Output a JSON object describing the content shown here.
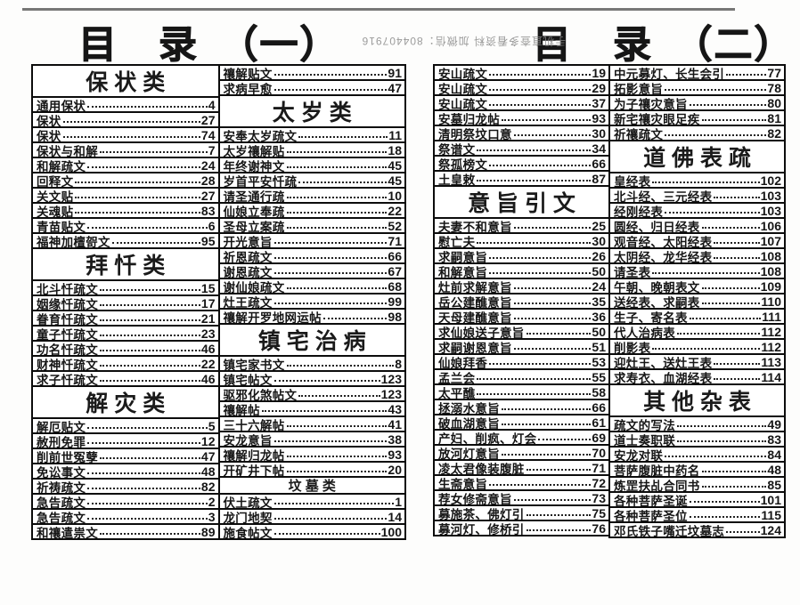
{
  "scan": {
    "stamp_text": "手机直查多看资料 加微信：804407916"
  },
  "pages": [
    {
      "title": "目　录　（一）",
      "columns": [
        {
          "blocks": [
            {
              "t": "h",
              "text": "保 状 类"
            },
            {
              "t": "e",
              "label": "通用保状",
              "page": "4"
            },
            {
              "t": "e",
              "label": "保状",
              "page": "27"
            },
            {
              "t": "e",
              "label": "保状",
              "page": "74"
            },
            {
              "t": "e",
              "label": "保状与和解",
              "page": "7"
            },
            {
              "t": "e",
              "label": "和解疏文",
              "page": "24"
            },
            {
              "t": "e",
              "label": "回释文",
              "page": "28"
            },
            {
              "t": "e",
              "label": "关文贴",
              "page": "27"
            },
            {
              "t": "e",
              "label": "关魂贴",
              "page": "83"
            },
            {
              "t": "e",
              "label": "青苗贴文",
              "page": "6"
            },
            {
              "t": "e",
              "label": "福神加檀哿文",
              "page": "95"
            },
            {
              "t": "h",
              "text": "拜 忏 类"
            },
            {
              "t": "e",
              "label": "北斗忏疏文",
              "page": "15"
            },
            {
              "t": "e",
              "label": "姻缘忏疏文",
              "page": "17"
            },
            {
              "t": "e",
              "label": "眷育忏疏文",
              "page": "21"
            },
            {
              "t": "e",
              "label": "童子忏疏文",
              "page": "23"
            },
            {
              "t": "e",
              "label": "功名忏疏文",
              "page": "46"
            },
            {
              "t": "e",
              "label": "财神忏疏文",
              "page": "22"
            },
            {
              "t": "e",
              "label": "求子忏疏文",
              "page": "46"
            },
            {
              "t": "h",
              "text": "解 灾 类"
            },
            {
              "t": "e",
              "label": "解厄贴文",
              "page": "5"
            },
            {
              "t": "e",
              "label": "赦刑免罪",
              "page": "12"
            },
            {
              "t": "e",
              "label": "削前世冤孽",
              "page": "47"
            },
            {
              "t": "e",
              "label": "免讼事文",
              "page": "48"
            },
            {
              "t": "e",
              "label": "祈祷疏文",
              "page": "82"
            },
            {
              "t": "e",
              "label": "急告疏文",
              "page": "2"
            },
            {
              "t": "e",
              "label": "急告疏文",
              "page": "3"
            },
            {
              "t": "e",
              "label": "和禳遣祟文",
              "page": "89"
            }
          ]
        },
        {
          "blocks": [
            {
              "t": "e",
              "label": "禳解贴文",
              "page": "91"
            },
            {
              "t": "e",
              "label": "求病早愈",
              "page": "47"
            },
            {
              "t": "h",
              "text": "太 岁 类"
            },
            {
              "t": "e",
              "label": "安奉太岁疏文",
              "page": "11"
            },
            {
              "t": "e",
              "label": "太岁禳解贴",
              "page": "18"
            },
            {
              "t": "e",
              "label": "年终谢神文",
              "page": "45"
            },
            {
              "t": "e",
              "label": "岁首平安忏疏",
              "page": "45"
            },
            {
              "t": "e",
              "label": "请圣通行疏",
              "page": "10"
            },
            {
              "t": "e",
              "label": "仙娘立奉疏",
              "page": "22"
            },
            {
              "t": "e",
              "label": "圣母立案疏",
              "page": "52"
            },
            {
              "t": "e",
              "label": "开光意旨",
              "page": "71"
            },
            {
              "t": "e",
              "label": "祈恩疏文",
              "page": "66"
            },
            {
              "t": "e",
              "label": "谢恩疏文",
              "page": "67"
            },
            {
              "t": "e",
              "label": "谢仙娘疏文",
              "page": "68"
            },
            {
              "t": "e",
              "label": "灶王疏文",
              "page": "99"
            },
            {
              "t": "e",
              "label": "禳解开罗地网运帖",
              "page": "98"
            },
            {
              "t": "h",
              "text": "镇 宅 治 病"
            },
            {
              "t": "e",
              "label": "镇宅家书文",
              "page": "8"
            },
            {
              "t": "e",
              "label": "镇宅帖文",
              "page": "123"
            },
            {
              "t": "e",
              "label": "驱邪化煞帖文",
              "page": "123"
            },
            {
              "t": "e",
              "label": "禳解帖",
              "page": "43"
            },
            {
              "t": "e",
              "label": "三十六解帖",
              "page": "41"
            },
            {
              "t": "e",
              "label": "安龙意旨",
              "page": "38"
            },
            {
              "t": "e",
              "label": "禳解归龙帖",
              "page": "93"
            },
            {
              "t": "e",
              "label": "开矿井下帖",
              "page": "20"
            },
            {
              "t": "h",
              "size": "sm",
              "text": "坟 墓 类"
            },
            {
              "t": "e",
              "label": "伏土疏文",
              "page": "1"
            },
            {
              "t": "e",
              "label": "龙门地契",
              "page": "14"
            },
            {
              "t": "e",
              "label": "施食帖文",
              "page": "100"
            }
          ]
        }
      ]
    },
    {
      "title": "目　录　（二）",
      "columns": [
        {
          "blocks": [
            {
              "t": "e",
              "label": "安山疏文",
              "page": "19"
            },
            {
              "t": "e",
              "label": "安山疏文",
              "page": "29"
            },
            {
              "t": "e",
              "label": "安山疏文",
              "page": "37"
            },
            {
              "t": "e",
              "label": "安墓归龙帖",
              "page": "93"
            },
            {
              "t": "e",
              "label": "清明祭坟口意",
              "page": "30"
            },
            {
              "t": "e",
              "label": "祭谱文",
              "page": "34"
            },
            {
              "t": "e",
              "label": "祭孤榜文",
              "page": "66"
            },
            {
              "t": "e",
              "label": "土皇敕",
              "page": "87"
            },
            {
              "t": "h",
              "text": "意 旨 引 文"
            },
            {
              "t": "e",
              "label": "夫妻不和意旨",
              "page": "25"
            },
            {
              "t": "e",
              "label": "慰亡夫",
              "page": "30"
            },
            {
              "t": "e",
              "label": "求嗣意旨",
              "page": "26"
            },
            {
              "t": "e",
              "label": "和解意旨",
              "page": "50"
            },
            {
              "t": "e",
              "label": "灶前求解意旨",
              "page": "24"
            },
            {
              "t": "e",
              "label": "岳公建醮意旨",
              "page": "35"
            },
            {
              "t": "e",
              "label": "天母建醮意旨",
              "page": "36"
            },
            {
              "t": "e",
              "label": "求仙娘送子意旨",
              "page": "50"
            },
            {
              "t": "e",
              "label": "求嗣谢恩意旨",
              "page": "51"
            },
            {
              "t": "e",
              "label": "仙娘拜香",
              "page": "53"
            },
            {
              "t": "e",
              "label": "孟兰会",
              "page": "55"
            },
            {
              "t": "e",
              "label": "太平醮",
              "page": "58"
            },
            {
              "t": "e",
              "label": "拯溺水意旨",
              "page": "66"
            },
            {
              "t": "e",
              "label": "破血湖意旨",
              "page": "61"
            },
            {
              "t": "e",
              "label": "产妇、削疯、灯会",
              "page": "69"
            },
            {
              "t": "e",
              "label": "放河灯意旨",
              "page": "70"
            },
            {
              "t": "e",
              "label": "凌太君像装腹脏",
              "page": "71"
            },
            {
              "t": "e",
              "label": "生斋意旨",
              "page": "72"
            },
            {
              "t": "e",
              "label": "荐女修斋意旨",
              "page": "73"
            },
            {
              "t": "e",
              "label": "募施茶、佛灯引",
              "page": "75"
            },
            {
              "t": "e",
              "label": "募河灯、修桥引",
              "page": "76"
            }
          ]
        },
        {
          "blocks": [
            {
              "t": "e",
              "label": "中元募灯、长生会引",
              "page": "77"
            },
            {
              "t": "e",
              "label": "拓影意旨",
              "page": "78"
            },
            {
              "t": "e",
              "label": "为子禳灾意旨",
              "page": "80"
            },
            {
              "t": "e",
              "label": "新宅禳灾眼足疾",
              "page": "81"
            },
            {
              "t": "e",
              "label": "祈禳疏文",
              "page": "82"
            },
            {
              "t": "h",
              "text": "道 佛 表 疏"
            },
            {
              "t": "e",
              "label": "皇经表",
              "page": "102"
            },
            {
              "t": "e",
              "label": "北斗经、三元经表",
              "page": "103"
            },
            {
              "t": "e",
              "label": "经刚经表",
              "page": "103"
            },
            {
              "t": "e",
              "label": "圆经、归日经表",
              "page": "106"
            },
            {
              "t": "e",
              "label": "观音经、太阳经表",
              "page": "107"
            },
            {
              "t": "e",
              "label": "太阴经、龙华经表",
              "page": "108"
            },
            {
              "t": "e",
              "label": "请圣表",
              "page": "108"
            },
            {
              "t": "e",
              "label": "午朝、晚朝表文",
              "page": "109"
            },
            {
              "t": "e",
              "label": "送经表、求嗣表",
              "page": "110"
            },
            {
              "t": "e",
              "label": "生子、寄名表",
              "page": "111"
            },
            {
              "t": "e",
              "label": "代人治病表",
              "page": "112"
            },
            {
              "t": "e",
              "label": "削影表",
              "page": "112"
            },
            {
              "t": "e",
              "label": "迎灶王、送灶王表",
              "page": "113"
            },
            {
              "t": "e",
              "label": "求寿衣、血湖经表",
              "page": "114"
            },
            {
              "t": "h",
              "text": "其 他 杂 表"
            },
            {
              "t": "e",
              "label": "疏文的写法",
              "page": "49"
            },
            {
              "t": "e",
              "label": "道士奏职联",
              "page": "83"
            },
            {
              "t": "e",
              "label": "安龙对联",
              "page": "84"
            },
            {
              "t": "e",
              "label": "菩萨腹脏中药名",
              "page": "48"
            },
            {
              "t": "e",
              "label": "炼罡扶乩合同书",
              "page": "85"
            },
            {
              "t": "e",
              "label": "各种菩萨圣诞",
              "page": "101"
            },
            {
              "t": "e",
              "label": "各种菩萨圣位",
              "page": "115"
            },
            {
              "t": "e",
              "label": "邓氏铁子嘴迁坟墓志",
              "page": "124"
            }
          ]
        }
      ]
    }
  ]
}
